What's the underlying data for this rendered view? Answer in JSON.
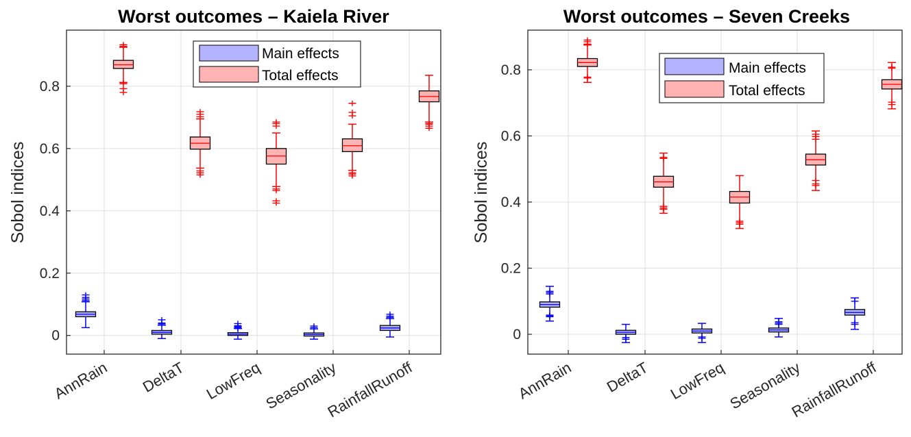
{
  "chart_data": [
    {
      "type": "box",
      "title": "Worst outcomes – Kaiela River",
      "xlabel": "",
      "ylabel": "Sobol indices",
      "ylim": [
        -0.06,
        0.98
      ],
      "yticks": [
        "0",
        "0.2",
        "0.4",
        "0.6",
        "0.8"
      ],
      "grid": true,
      "legend_position": "top-center",
      "categories": [
        "AnnRain",
        "DeltaT",
        "LowFreq",
        "Seasonality",
        "RainfallRunoff"
      ],
      "series": [
        {
          "name": "Main effects",
          "color": "#0000ff",
          "fill": "#b3b3ff",
          "boxes": [
            {
              "whisker_low": 0.025,
              "q1": 0.06,
              "median": 0.068,
              "q3": 0.076,
              "whisker_high": 0.108,
              "outliers": [
                0.112,
                0.117,
                0.122,
                0.13
              ]
            },
            {
              "whisker_low": -0.01,
              "q1": 0.004,
              "median": 0.01,
              "q3": 0.016,
              "whisker_high": 0.033,
              "outliers": [
                0.037,
                0.04,
                0.05
              ]
            },
            {
              "whisker_low": -0.012,
              "q1": 0.0,
              "median": 0.004,
              "q3": 0.009,
              "whisker_high": 0.022,
              "outliers": [
                0.025,
                0.028,
                0.031,
                0.038
              ]
            },
            {
              "whisker_low": -0.012,
              "q1": -0.002,
              "median": 0.003,
              "q3": 0.008,
              "whisker_high": 0.021,
              "outliers": [
                0.025,
                0.03
              ]
            },
            {
              "whisker_low": -0.005,
              "q1": 0.016,
              "median": 0.024,
              "q3": 0.032,
              "whisker_high": 0.054,
              "outliers": [
                0.058,
                0.062,
                0.068
              ]
            }
          ]
        },
        {
          "name": "Total effects",
          "color": "#ff0000",
          "fill": "#ffb3b3",
          "boxes": [
            {
              "whisker_low": 0.812,
              "q1": 0.857,
              "median": 0.869,
              "q3": 0.883,
              "whisker_high": 0.925,
              "outliers": [
                0.78,
                0.792,
                0.808,
                0.812,
                0.928,
                0.933
              ]
            },
            {
              "whisker_low": 0.537,
              "q1": 0.598,
              "median": 0.617,
              "q3": 0.637,
              "whisker_high": 0.695,
              "outliers": [
                0.515,
                0.522,
                0.528,
                0.702,
                0.71,
                0.718
              ]
            },
            {
              "whisker_low": 0.478,
              "q1": 0.55,
              "median": 0.576,
              "q3": 0.6,
              "whisker_high": 0.65,
              "outliers": [
                0.425,
                0.432,
                0.465,
                0.47,
                0.672,
                0.68,
                0.685
              ]
            },
            {
              "whisker_low": 0.53,
              "q1": 0.59,
              "median": 0.609,
              "q3": 0.631,
              "whisker_high": 0.678,
              "outliers": [
                0.512,
                0.518,
                0.522,
                0.705,
                0.716,
                0.745
              ]
            },
            {
              "whisker_low": 0.685,
              "q1": 0.75,
              "median": 0.767,
              "q3": 0.785,
              "whisker_high": 0.835,
              "outliers": [
                0.665,
                0.672,
                0.678,
                0.68
              ]
            }
          ]
        }
      ]
    },
    {
      "type": "box",
      "title": "Worst outcomes – Seven Creeks",
      "xlabel": "",
      "ylabel": "Sobol indices",
      "ylim": [
        -0.06,
        0.92
      ],
      "yticks": [
        "0",
        "0.2",
        "0.4",
        "0.6",
        "0.8"
      ],
      "grid": true,
      "legend_position": "top-right",
      "categories": [
        "AnnRain",
        "DeltaT",
        "LowFreq",
        "Seasonality",
        "RainfallRunoff"
      ],
      "series": [
        {
          "name": "Main effects",
          "color": "#0000ff",
          "fill": "#b3b3ff",
          "boxes": [
            {
              "whisker_low": 0.04,
              "q1": 0.082,
              "median": 0.09,
              "q3": 0.098,
              "whisker_high": 0.145,
              "outliers": [
                0.053,
                0.056,
                0.058,
                0.122,
                0.126,
                0.13
              ]
            },
            {
              "whisker_low": -0.025,
              "q1": 0.0,
              "median": 0.006,
              "q3": 0.012,
              "whisker_high": 0.03,
              "outliers": [
                -0.015,
                -0.01
              ]
            },
            {
              "whisker_low": -0.025,
              "q1": 0.004,
              "median": 0.01,
              "q3": 0.016,
              "whisker_high": 0.033,
              "outliers": [
                -0.012,
                -0.008
              ]
            },
            {
              "whisker_low": -0.008,
              "q1": 0.007,
              "median": 0.013,
              "q3": 0.019,
              "whisker_high": 0.048,
              "outliers": [
                0.03,
                0.034,
                0.038
              ]
            },
            {
              "whisker_low": 0.015,
              "q1": 0.058,
              "median": 0.066,
              "q3": 0.075,
              "whisker_high": 0.11,
              "outliers": [
                0.03,
                0.035,
                0.1
              ]
            }
          ]
        },
        {
          "name": "Total effects",
          "color": "#ff0000",
          "fill": "#ffb3b3",
          "boxes": [
            {
              "whisker_low": 0.762,
              "q1": 0.81,
              "median": 0.822,
              "q3": 0.834,
              "whisker_high": 0.875,
              "outliers": [
                0.775,
                0.778,
                0.878,
                0.885,
                0.89
              ]
            },
            {
              "whisker_low": 0.366,
              "q1": 0.445,
              "median": 0.461,
              "q3": 0.478,
              "whisker_high": 0.548,
              "outliers": [
                0.378,
                0.382,
                0.387,
                0.532,
                0.535
              ]
            },
            {
              "whisker_low": 0.32,
              "q1": 0.397,
              "median": 0.415,
              "q3": 0.432,
              "whisker_high": 0.48,
              "outliers": [
                0.333,
                0.338,
                0.342
              ]
            },
            {
              "whisker_low": 0.435,
              "q1": 0.512,
              "median": 0.528,
              "q3": 0.545,
              "whisker_high": 0.615,
              "outliers": [
                0.45,
                0.455,
                0.465,
                0.59,
                0.598,
                0.605
              ]
            },
            {
              "whisker_low": 0.682,
              "q1": 0.742,
              "median": 0.756,
              "q3": 0.77,
              "whisker_high": 0.822,
              "outliers": [
                0.695,
                0.702,
                0.805,
                0.808
              ]
            }
          ]
        }
      ]
    }
  ]
}
